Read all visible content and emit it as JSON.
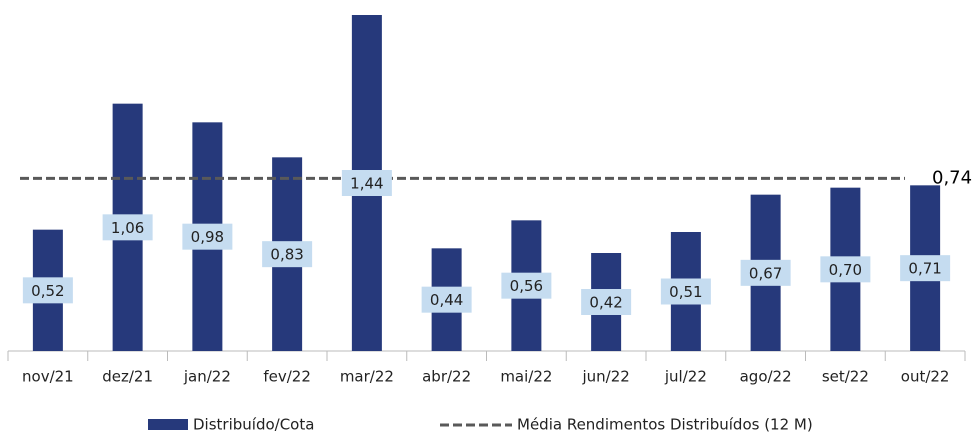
{
  "chart_data": {
    "type": "bar",
    "categories": [
      "nov/21",
      "dez/21",
      "jan/22",
      "fev/22",
      "mar/22",
      "abr/22",
      "mai/22",
      "jun/22",
      "jul/22",
      "ago/22",
      "set/22",
      "out/22"
    ],
    "series": [
      {
        "name": "Distribuído/Cota",
        "color": "#26397b",
        "values": [
          0.52,
          1.06,
          0.98,
          0.83,
          1.44,
          0.44,
          0.56,
          0.42,
          0.51,
          0.67,
          0.7,
          0.71
        ],
        "value_labels": [
          "0,52",
          "1,06",
          "0,98",
          "0,83",
          "1,44",
          "0,44",
          "0,56",
          "0,42",
          "0,51",
          "0,67",
          "0,70",
          "0,71"
        ]
      }
    ],
    "average": {
      "name": "Média Rendimentos Distribuídos (12 M)",
      "value": 0.74,
      "value_label": "0,74",
      "color": "#595959"
    },
    "ylim": [
      0,
      1.5
    ]
  }
}
